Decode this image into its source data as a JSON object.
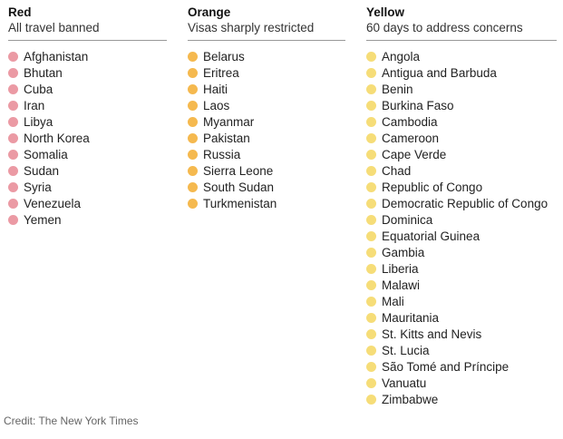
{
  "colors": {
    "red": "#eb9aa4",
    "orange": "#f5b94f",
    "yellow": "#f6dd78"
  },
  "columns": [
    {
      "key": "red",
      "title": "Red",
      "subtitle": "All travel banned",
      "countries": [
        "Afghanistan",
        "Bhutan",
        "Cuba",
        "Iran",
        "Libya",
        "North Korea",
        "Somalia",
        "Sudan",
        "Syria",
        "Venezuela",
        "Yemen"
      ]
    },
    {
      "key": "orange",
      "title": "Orange",
      "subtitle": "Visas sharply restricted",
      "countries": [
        "Belarus",
        "Eritrea",
        "Haiti",
        "Laos",
        "Myanmar",
        "Pakistan",
        "Russia",
        "Sierra Leone",
        "South Sudan",
        "Turkmenistan"
      ]
    },
    {
      "key": "yellow",
      "title": "Yellow",
      "subtitle": "60 days to address concerns",
      "countries": [
        "Angola",
        "Antigua and Barbuda",
        "Benin",
        "Burkina Faso",
        "Cambodia",
        "Cameroon",
        "Cape Verde",
        "Chad",
        "Republic of Congo",
        "Democratic Republic of Congo",
        "Dominica",
        "Equatorial Guinea",
        "Gambia",
        "Liberia",
        "Malawi",
        "Mali",
        "Mauritania",
        "St. Kitts and Nevis",
        "St. Lucia",
        "São Tomé and Príncipe",
        "Vanuatu",
        "Zimbabwe"
      ]
    }
  ],
  "credit": "Credit: The New York Times"
}
